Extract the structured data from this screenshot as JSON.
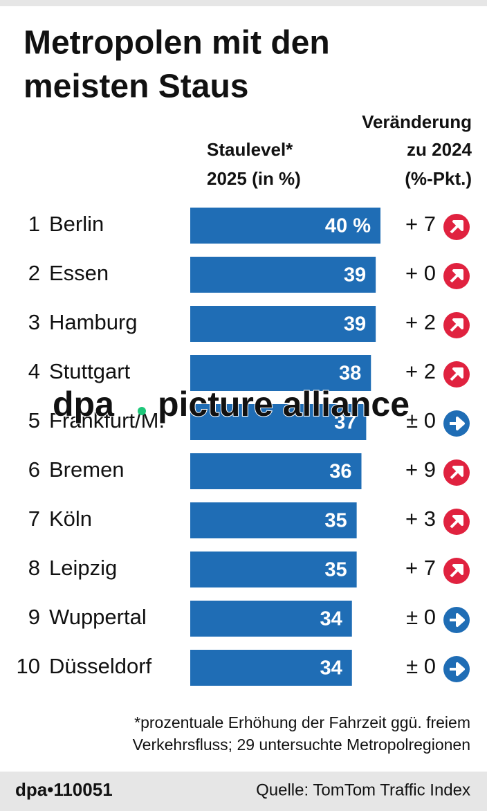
{
  "chart_data": {
    "type": "bar",
    "title": [
      "Metropolen mit den",
      "meisten Staus"
    ],
    "value_header": [
      "Staulevel*",
      "2025 (in %)"
    ],
    "change_header": [
      "Veränderung",
      "zu 2024",
      "(%-Pkt.)"
    ],
    "ranks": [
      "1",
      "2",
      "3",
      "4",
      "5",
      "6",
      "7",
      "8",
      "9",
      "10"
    ],
    "categories": [
      "Berlin",
      "Essen",
      "Hamburg",
      "Stuttgart",
      "Frankfurt/M.",
      "Bremen",
      "Köln",
      "Leipzig",
      "Wuppertal",
      "Düsseldorf"
    ],
    "values": [
      40,
      39,
      39,
      38,
      37,
      36,
      35,
      35,
      34,
      34
    ],
    "value_labels": [
      "40 %",
      "39",
      "39",
      "38",
      "37",
      "36",
      "35",
      "35",
      "34",
      "34"
    ],
    "changes": [
      "+ 7",
      "+ 0",
      "+ 2",
      "+ 2",
      "± 0",
      "+ 9",
      "+ 3",
      "+ 7",
      "± 0",
      "± 0"
    ],
    "change_trend": [
      "up",
      "up",
      "up",
      "up",
      "flat",
      "up",
      "up",
      "up",
      "flat",
      "flat"
    ],
    "color": "#1f6db5",
    "trend_colors": {
      "up": "#e0223f",
      "flat": "#1f6db5"
    },
    "xlim": [
      0,
      40
    ],
    "footnote": [
      "*prozentuale Erhöhung der Fahrzeit ggü. freiem",
      "Verkehrsfluss; 29 untersuchte Metropolregionen"
    ],
    "watermark": [
      "dpa",
      "picture alliance"
    ],
    "graphic_id": "dpa•110051",
    "source": "Quelle: TomTom Traffic Index"
  }
}
